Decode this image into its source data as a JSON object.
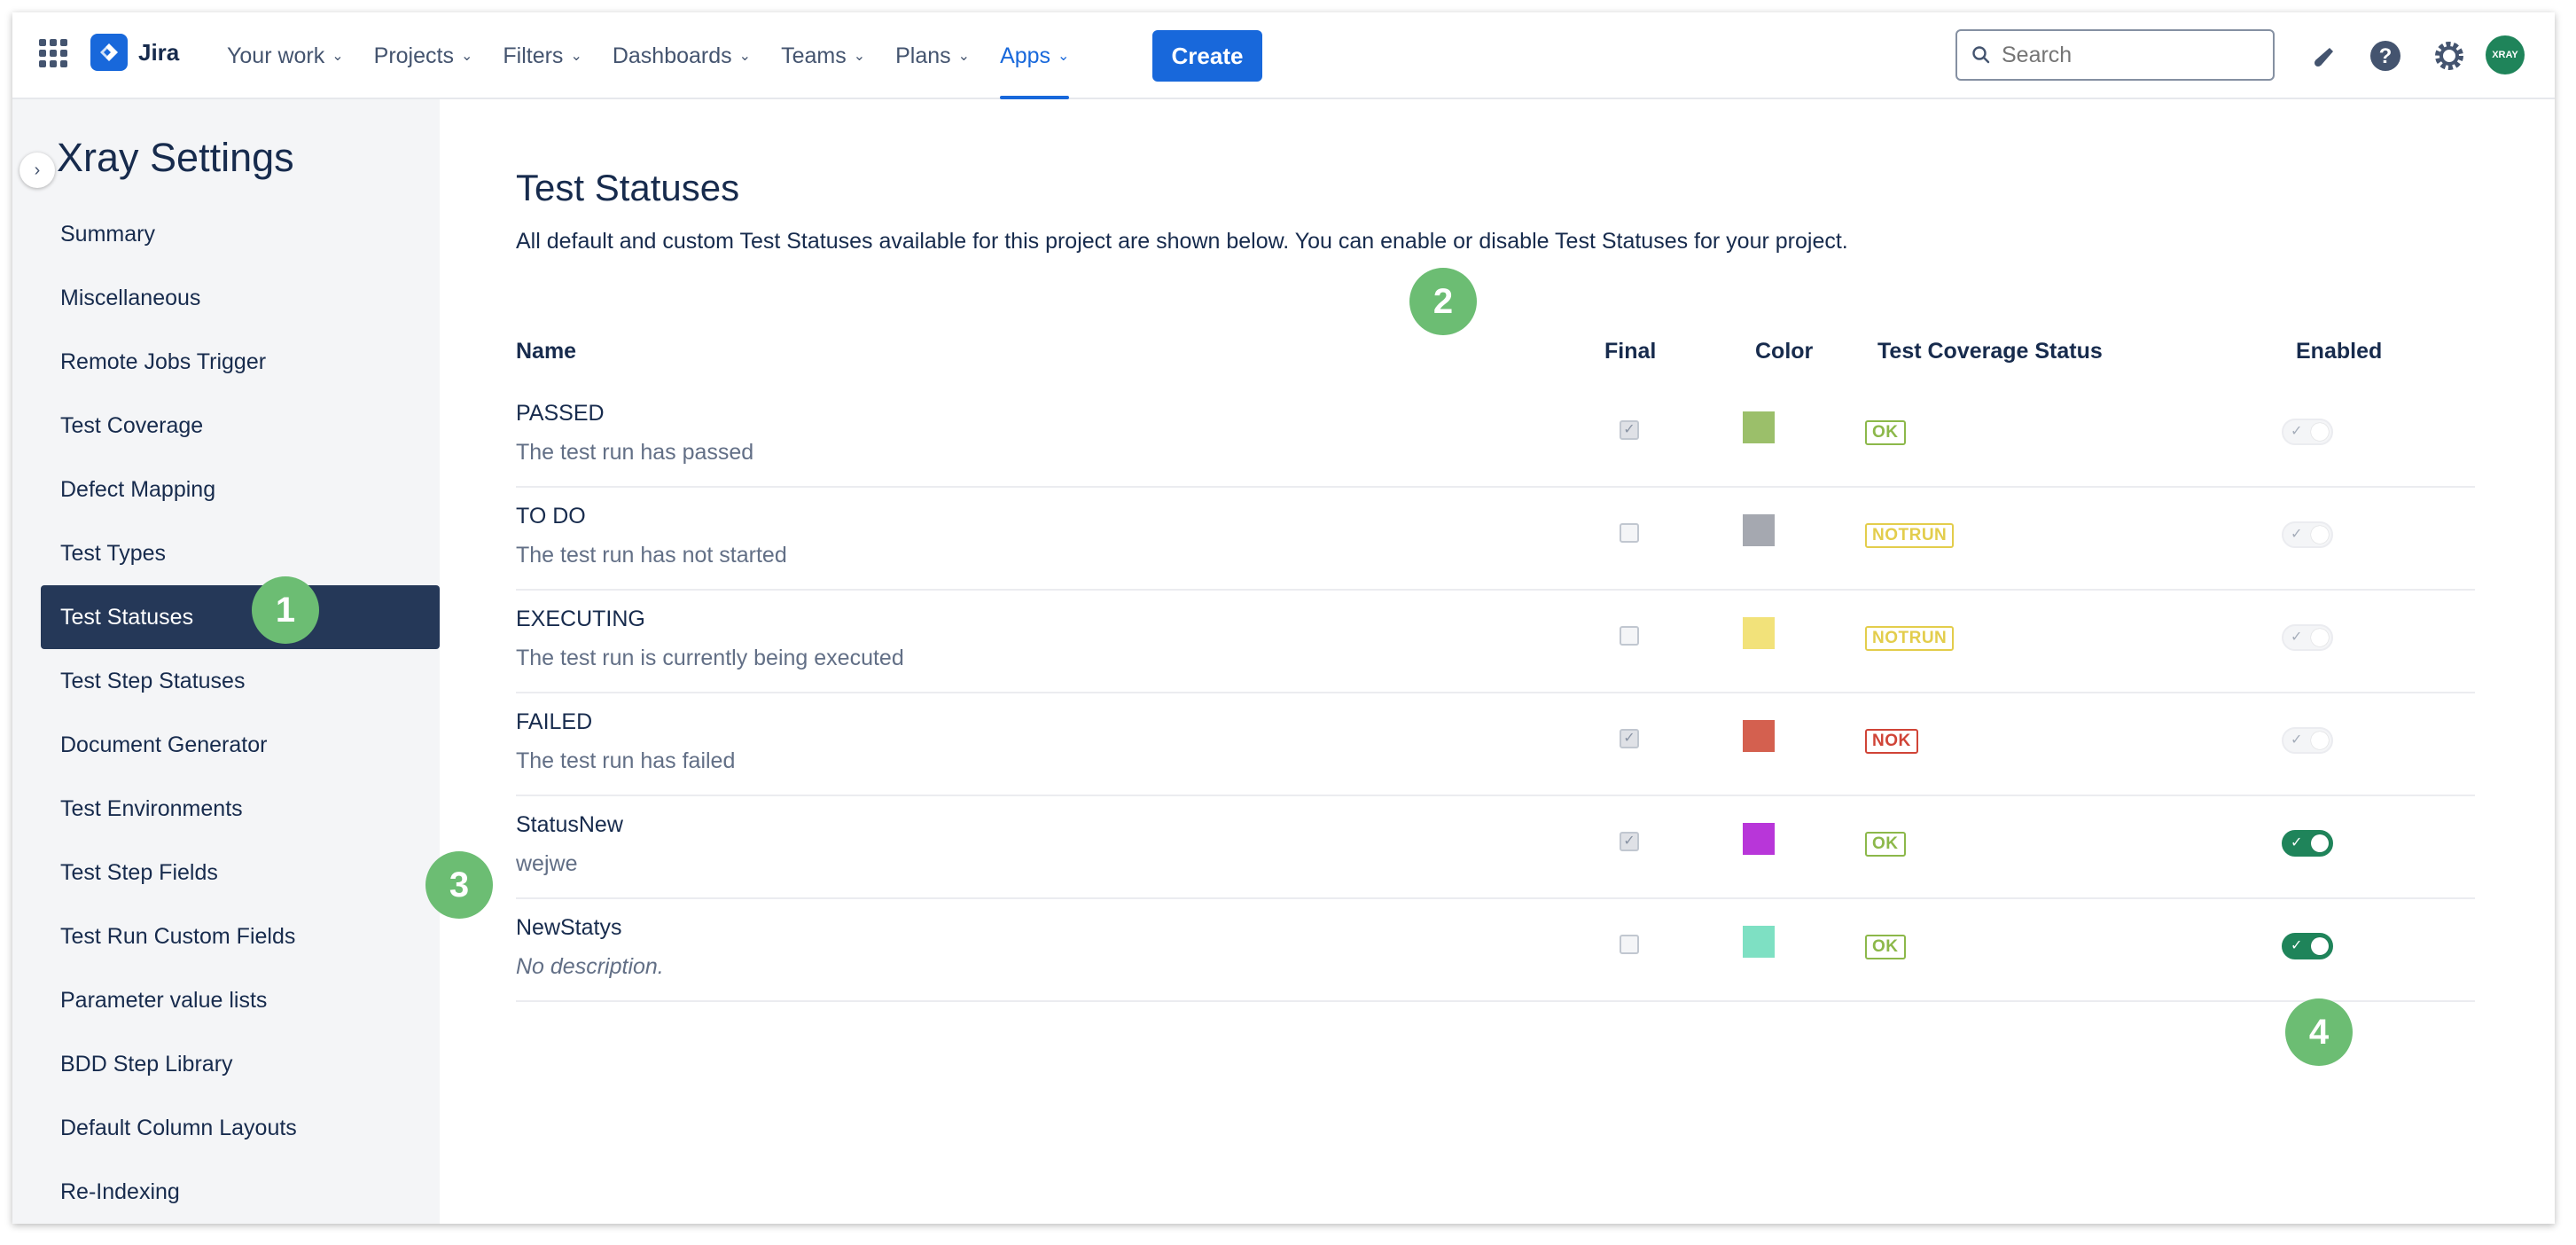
{
  "topnav": {
    "app_name": "Jira",
    "items": [
      {
        "label": "Your work"
      },
      {
        "label": "Projects"
      },
      {
        "label": "Filters"
      },
      {
        "label": "Dashboards"
      },
      {
        "label": "Teams"
      },
      {
        "label": "Plans"
      },
      {
        "label": "Apps",
        "active": true
      }
    ],
    "create_label": "Create",
    "search_placeholder": "Search",
    "avatar_text": "XRAY",
    "accent_color": "#1868db"
  },
  "sidebar": {
    "title": "Xray Settings",
    "items": [
      {
        "label": "Summary"
      },
      {
        "label": "Miscellaneous"
      },
      {
        "label": "Remote Jobs Trigger"
      },
      {
        "label": "Test Coverage"
      },
      {
        "label": "Defect Mapping"
      },
      {
        "label": "Test Types"
      },
      {
        "label": "Test Statuses",
        "active": true
      },
      {
        "label": "Test Step Statuses"
      },
      {
        "label": "Document Generator"
      },
      {
        "label": "Test Environments"
      },
      {
        "label": "Test Step Fields"
      },
      {
        "label": "Test Run Custom Fields"
      },
      {
        "label": "Parameter value lists"
      },
      {
        "label": "BDD Step Library"
      },
      {
        "label": "Default Column Layouts"
      },
      {
        "label": "Re-Indexing"
      }
    ]
  },
  "markers": [
    "1",
    "2",
    "3",
    "4"
  ],
  "main": {
    "title": "Test Statuses",
    "description": "All default and custom Test Statuses available for this project are shown below. You can enable or disable Test Statuses for your project.",
    "columns": {
      "name": "Name",
      "final": "Final",
      "color": "Color",
      "coverage": "Test Coverage Status",
      "enabled": "Enabled"
    },
    "rows": [
      {
        "name": "PASSED",
        "description": "The test run has passed",
        "final": true,
        "color": "#9bbf6a",
        "coverage": "OK",
        "coverage_color": "#8cb84a",
        "enabled": false
      },
      {
        "name": "TO DO",
        "description": "The test run has not started",
        "final": false,
        "color": "#a5a8b0",
        "coverage": "NOTRUN",
        "coverage_color": "#e3cd4c",
        "enabled": false
      },
      {
        "name": "EXECUTING",
        "description": "The test run is currently being executed",
        "final": false,
        "color": "#f2e27a",
        "coverage": "NOTRUN",
        "coverage_color": "#e3cd4c",
        "enabled": false
      },
      {
        "name": "FAILED",
        "description": "The test run has failed",
        "final": true,
        "color": "#d4604f",
        "coverage": "NOK",
        "coverage_color": "#d04437",
        "enabled": false
      },
      {
        "name": "StatusNew",
        "description": "wejwe",
        "final": true,
        "color": "#b836d9",
        "coverage": "OK",
        "coverage_color": "#8cb84a",
        "enabled": true
      },
      {
        "name": "NewStatys",
        "description": "No description.",
        "description_italic": true,
        "final": false,
        "color": "#7ee0c3",
        "coverage": "OK",
        "coverage_color": "#8cb84a",
        "enabled": true
      }
    ]
  }
}
